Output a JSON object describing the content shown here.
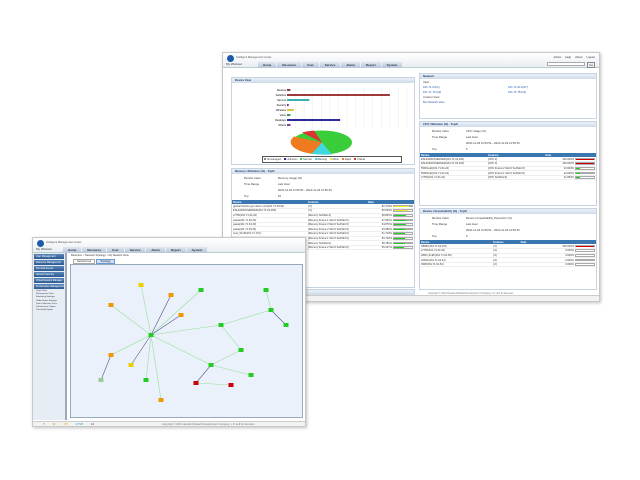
{
  "app": {
    "title": "Intelligent Management Center",
    "workspace": "My Workout",
    "nav": [
      "Home",
      "Resource",
      "User",
      "Service",
      "Alarm",
      "Report",
      "System"
    ],
    "user_links": [
      "admin",
      "Help",
      "About",
      "Logout"
    ],
    "search_button": "Go"
  },
  "service_view": {
    "title": "Device View",
    "categories": [
      "Routers",
      "Switches",
      "Servers",
      "Security",
      "Wireless",
      "Voice",
      "Desktops",
      "Others"
    ],
    "values": [
      2,
      60,
      13,
      1,
      4,
      2,
      31,
      2
    ],
    "legend": [
      "Unmanaged",
      "Unknown",
      "Normal",
      "Warning",
      "Minor",
      "Major",
      "Critical"
    ],
    "colors": [
      "#8b4040",
      "#a03a3a",
      "#3ab0b0",
      "#7a2f8a",
      "#d7c93a",
      "#3a9a5a",
      "#2a2a9a",
      "#8a3a8a"
    ]
  },
  "memory": {
    "title": "Memory Utilization (%) - TopN",
    "monitor_label": "Monitor Index",
    "monitor": "Memory Usage (%)",
    "range_label": "Time Range",
    "range": "Last Hour",
    "dates": "2010-11-03 11:50:51 - 2010-11-03 12:50:51",
    "top_label": "Top",
    "top": "10",
    "cols": [
      "Device",
      "Instance",
      "Data"
    ],
    "rows": [
      [
        "gpxbah-fedora.gxo.3com.com(161.71.64.94)",
        "[.0]",
        "82.179%",
        82.179
      ],
      [
        "ESL46200OSERVER(161.71.64.200)",
        "[.0]",
        "80.533%",
        80.533
      ],
      [
        "s7750(161.71.64.22)",
        "[Memory SubSlot:4]",
        "68.861%",
        68.861
      ],
      [
        "pasta(161.71.64.23)",
        "[Memory:Frame:1 Slot:0 SubSlot:0]",
        "67.661%",
        67.661
      ],
      [
        "pasta(161.71.64.23)",
        "[Memory:Frame:3 Slot:0 SubSlot:0]",
        "64.870%",
        64.87
      ],
      [
        "pasta(161.71.64.23)",
        "[Memory:Frame:2 Slot:0 SubSlot:0]",
        "63.282%",
        63.282
      ],
      [
        "core_50.25(161.71.70.1)",
        "[Memory:Frame:1 Slot:0 SubSlot:0]",
        "61.723%",
        61.723
      ],
      [
        "5500-EI(161.71.64.198)",
        "[Memory:Frame:1 Slot:0 SubSlot:0]",
        "60.722%",
        60.722
      ],
      [
        "s7750(161.71.64.22)",
        "[Memory SubSlot:0]",
        "58.781%",
        58.781
      ],
      [
        "5500G-EI(161.71.64.24)",
        "[Memory:Frame:2 Slot:0 SubSlot:0]",
        "56.247%",
        56.247
      ]
    ]
  },
  "response": {
    "title": "Device Response Time (ms) - TopN"
  },
  "network": {
    "title": "Network",
    "view": "View",
    "links": [
      "161.71.0.0(1)",
      "161.71.64.0(27)",
      "161.71.74.0(2)",
      "161.71.78.0(1)"
    ],
    "custom": "Custom View",
    "mynet": "My Network View"
  },
  "cpu": {
    "title": "CPU Utilization (%) - TopN",
    "monitor": "CPU Usage (%)",
    "range": "Last Hour",
    "dates": "2010-11-03 11:50:51 - 2010-11-03 12:50:51",
    "top": "5",
    "rows": [
      [
        "ESL46200OSERVER(161.71.64.200)",
        "[CPU 2]",
        "100.000%",
        100
      ],
      [
        "ESL46200OSERVER(161.71.64.200)",
        "[CPU 3]",
        "100.000%",
        100
      ],
      [
        "5500G-EI(161.71.64.24)",
        "[CPU:Frame:2 Slot:0 SubSlot:0]",
        "23.633%",
        23.633
      ],
      [
        "5500G-EI(161.71.64.24)",
        "[CPU:Frame:1 Slot:0 SubSlot:0]",
        "22.000%",
        22
      ],
      [
        "s7750(161.71.64.22)",
        "[CPU SubSlot:0]",
        "21.833%",
        21.833
      ]
    ]
  },
  "unreach": {
    "title": "Device Unreachability (%) - TopN",
    "monitor": "Device Unreachability Proportion (%)",
    "range": "Last Hour",
    "dates": "2010-11-03 11:50:51 - 2010-11-03 12:50:51",
    "top": "5",
    "rows": [
      [
        "N8652(161.71.64.161)",
        "[.0]",
        "100.000%",
        100
      ],
      [
        "s7750(161.71.64.22)",
        "[.0]",
        "0.000%",
        0
      ],
      [
        "4800 (JL48)(161.71.64.50)",
        "[.0]",
        "0.000%",
        0
      ],
      [
        "4200G(161.71.64.42)",
        "[.0]",
        "0.000%",
        0
      ],
      [
        "3938(161.71.64.52)",
        "[.0]",
        "0.000%",
        0
      ]
    ]
  },
  "status_counts": [
    "7",
    "52",
    "178",
    "17728",
    "14"
  ],
  "copyright": "Copyright © 2010 Hewlett-Packard Development Company, L.P. and its licensors",
  "left_win": {
    "sidebar": [
      "User Management",
      "Resource Management",
      "Terminal Access",
      "Network Security",
      "Virtual Network Manager",
      "Performance Management"
    ],
    "menu": [
      "Quick View",
      "Performance View",
      "Monitoring Settings",
      "Global Index Settings",
      "Data Collection Trace",
      "Performance Option",
      "Threshold Option"
    ],
    "breadcrumb": "Resource > Network Topology > My Network View",
    "tabs": [
      "Network List",
      "Topology"
    ]
  }
}
